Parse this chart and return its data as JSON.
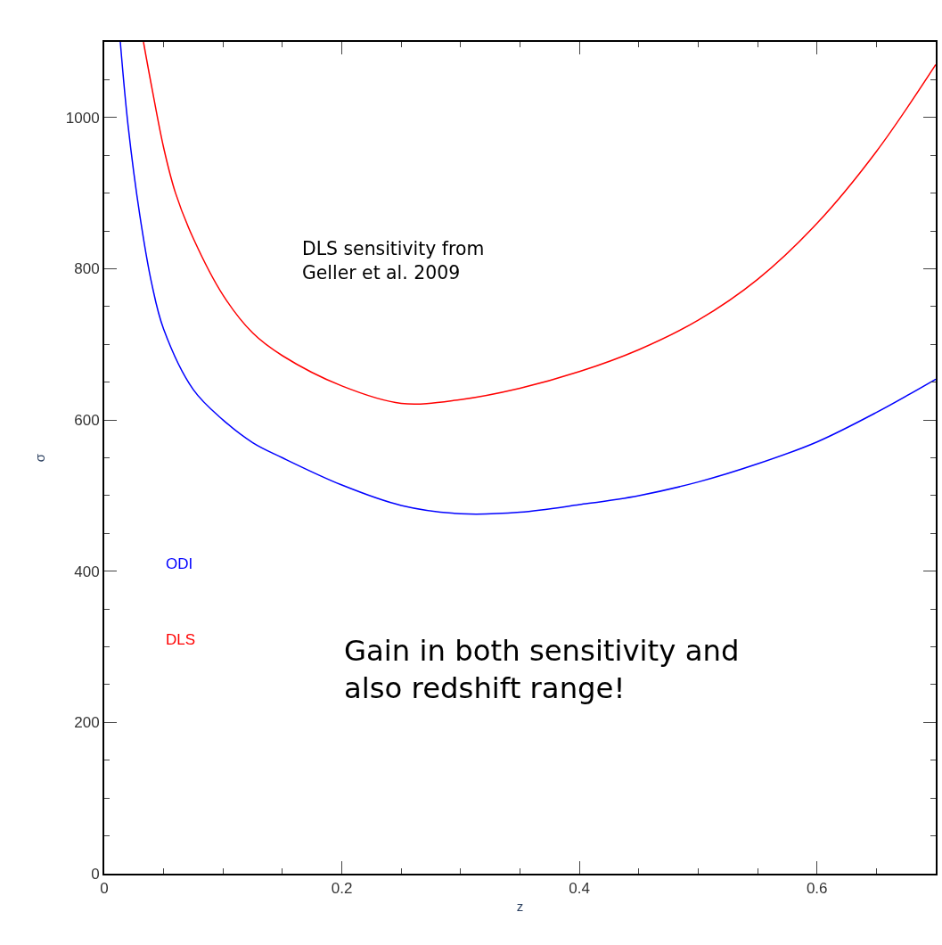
{
  "chart_data": {
    "type": "line",
    "xlabel": "z",
    "ylabel": "σ",
    "xlim": [
      0,
      0.7
    ],
    "xticks": [
      0,
      0.2,
      0.4,
      0.6
    ],
    "ylim": [
      0,
      1100
    ],
    "yticks": [
      0,
      200,
      400,
      600,
      800,
      1000
    ],
    "legend": false,
    "marker": "none",
    "line_style": "solid",
    "series": [
      {
        "name": "ODI",
        "color": "#0000ff",
        "x": [
          0.0135,
          0.02,
          0.03,
          0.04,
          0.05,
          0.075,
          0.1,
          0.125,
          0.15,
          0.2,
          0.25,
          0.3,
          0.35,
          0.4,
          0.45,
          0.5,
          0.55,
          0.6,
          0.65,
          0.7
        ],
        "values": [
          1100,
          990,
          870,
          780,
          720,
          640,
          600,
          570,
          550,
          514,
          487,
          476,
          478,
          488,
          500,
          518,
          542,
          571,
          610,
          654
        ]
      },
      {
        "name": "DLS",
        "color": "#ff0000",
        "x": [
          0.033,
          0.04,
          0.05,
          0.06,
          0.075,
          0.1,
          0.125,
          0.15,
          0.2,
          0.25,
          0.3,
          0.35,
          0.4,
          0.45,
          0.5,
          0.55,
          0.6,
          0.65,
          0.7
        ],
        "values": [
          1100,
          1040,
          960,
          900,
          840,
          765,
          715,
          685,
          645,
          622,
          627,
          642,
          664,
          693,
          732,
          786,
          860,
          955,
          1070
        ]
      }
    ],
    "annotations": [
      "DLS sensitivity from\nGeller et al. 2009",
      "Gain in both sensitivity and\nalso redshift range!"
    ]
  }
}
